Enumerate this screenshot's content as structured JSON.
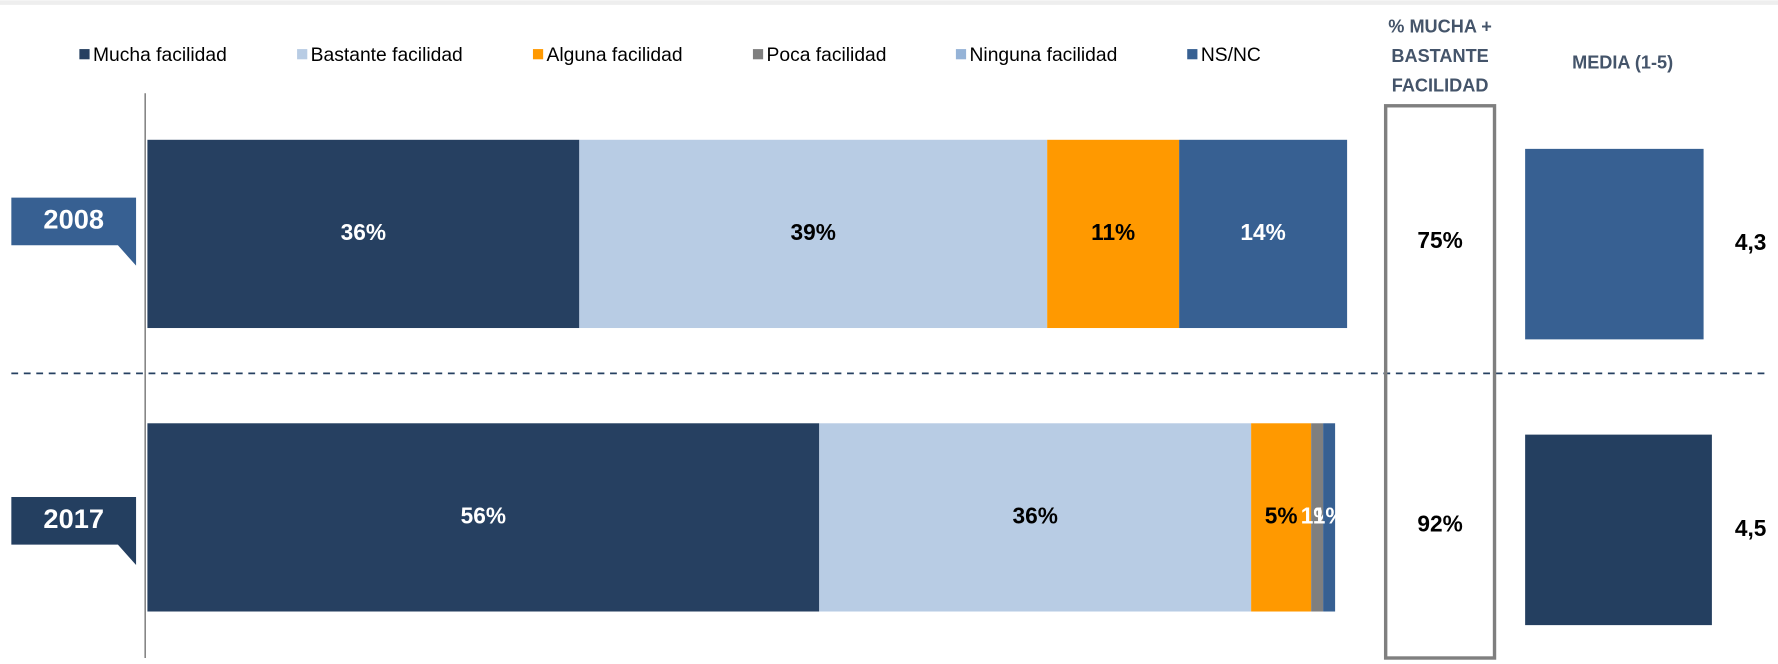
{
  "chart_data": {
    "type": "stacked-hbar",
    "categories": [
      "2008",
      "2017"
    ],
    "xlim": [
      0,
      100
    ],
    "series": [
      {
        "name": "Mucha facilidad",
        "color": "#264061",
        "values": [
          36,
          56
        ],
        "value_labels": [
          "36%",
          "56%"
        ]
      },
      {
        "name": "Bastante facilidad",
        "color": "#b8cce4",
        "values": [
          39,
          36
        ],
        "value_labels": [
          "39%",
          "36%"
        ]
      },
      {
        "name": "Alguna facilidad",
        "color": "#ff9900",
        "values": [
          11,
          5
        ],
        "value_labels": [
          "11%",
          "5%"
        ]
      },
      {
        "name": "Poca facilidad",
        "color": "#7f7f7f",
        "values": [
          0,
          1
        ],
        "value_labels": [
          null,
          "1%"
        ]
      },
      {
        "name": "Ninguna facilidad",
        "color": "#95b3d7",
        "values": [
          0,
          0
        ],
        "value_labels": [
          null,
          null
        ]
      },
      {
        "name": "NS/NC",
        "color": "#376092",
        "values": [
          14,
          1
        ],
        "value_labels": [
          "14%",
          "1%"
        ]
      }
    ],
    "category_colors": [
      "#376092",
      "#243f60"
    ],
    "pct_header": [
      "% MUCHA +",
      "BASTANTE",
      "FACILIDAD"
    ],
    "pct_values": [
      75,
      92
    ],
    "pct_labels": [
      "75%",
      "92%"
    ],
    "media_header": "MEDIA (1-5)",
    "media_values": [
      4.3,
      4.5
    ],
    "media_labels": [
      "4,3",
      "4,5"
    ],
    "media_xlim": [
      0,
      5
    ]
  }
}
